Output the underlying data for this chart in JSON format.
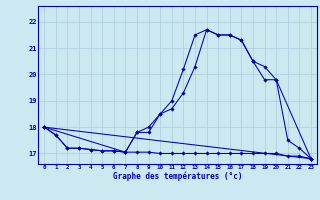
{
  "xlabel": "Graphe des températures (°c)",
  "ylabel": "",
  "background_color": "#cce8f0",
  "line_color": "#0000bb",
  "grid_color": "#aaccdd",
  "xlim": [
    -0.5,
    23.5
  ],
  "ylim": [
    16.6,
    22.6
  ],
  "xticks": [
    0,
    1,
    2,
    3,
    4,
    5,
    6,
    7,
    8,
    9,
    10,
    11,
    12,
    13,
    14,
    15,
    16,
    17,
    18,
    19,
    20,
    21,
    22,
    23
  ],
  "yticks": [
    17,
    18,
    19,
    20,
    21,
    22
  ],
  "series": [
    {
      "x": [
        0,
        1,
        2,
        3,
        4,
        5,
        6,
        7,
        8,
        9,
        10,
        11,
        12,
        13,
        14,
        15,
        16,
        17,
        18,
        19,
        20,
        21,
        22,
        23
      ],
      "y": [
        18.0,
        17.7,
        17.2,
        17.2,
        17.15,
        17.1,
        17.1,
        17.05,
        17.05,
        17.05,
        17.0,
        17.0,
        17.0,
        17.0,
        17.0,
        17.0,
        17.0,
        17.0,
        17.0,
        17.0,
        17.0,
        16.9,
        16.9,
        16.8
      ]
    },
    {
      "x": [
        0,
        1,
        2,
        3,
        4,
        5,
        6,
        7,
        8,
        9,
        10,
        11,
        12,
        13,
        14,
        15,
        16,
        17,
        18,
        19,
        20,
        21,
        22,
        23
      ],
      "y": [
        18.0,
        17.7,
        17.2,
        17.2,
        17.15,
        17.1,
        17.1,
        17.05,
        17.8,
        18.0,
        18.5,
        19.0,
        20.2,
        21.5,
        21.7,
        21.5,
        21.5,
        21.3,
        20.5,
        19.8,
        19.8,
        17.5,
        17.2,
        16.8
      ]
    },
    {
      "x": [
        0,
        23
      ],
      "y": [
        18.0,
        16.8
      ]
    },
    {
      "x": [
        0,
        7,
        8,
        9,
        10,
        11,
        12,
        13,
        14,
        15,
        16,
        17,
        18,
        19,
        20,
        23
      ],
      "y": [
        18.0,
        17.05,
        17.8,
        17.8,
        18.5,
        18.7,
        19.3,
        20.3,
        21.7,
        21.5,
        21.5,
        21.3,
        20.5,
        20.3,
        19.8,
        16.8
      ]
    }
  ]
}
